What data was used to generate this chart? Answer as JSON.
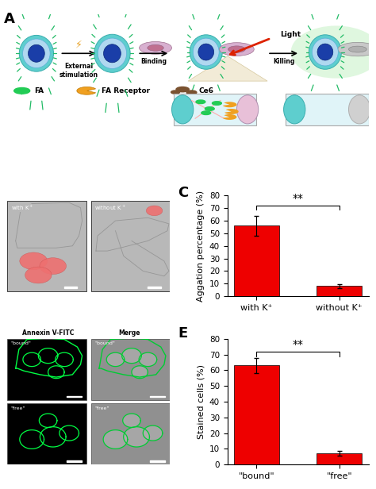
{
  "chart_C": {
    "categories": [
      "with K⁺",
      "without K⁺"
    ],
    "values": [
      56.0,
      8.0
    ],
    "errors": [
      8.0,
      1.5
    ],
    "bar_color": "#ee0000",
    "ylabel": "Aggation percentage (%)",
    "ylim": [
      0,
      80
    ],
    "yticks": [
      0,
      10,
      20,
      30,
      40,
      50,
      60,
      70,
      80
    ],
    "significance": "**",
    "label": "C"
  },
  "chart_E": {
    "categories": [
      "\"bound\"",
      "\"free\""
    ],
    "values": [
      63.0,
      7.0
    ],
    "errors": [
      5.0,
      1.5
    ],
    "bar_color": "#ee0000",
    "ylabel": "Stained cells (%)",
    "ylim": [
      0,
      80
    ],
    "yticks": [
      0,
      10,
      20,
      30,
      40,
      50,
      60,
      70,
      80
    ],
    "significance": "**",
    "label": "E"
  },
  "panel_labels_fontsize": 13,
  "tick_fontsize": 7.5,
  "ylabel_fontsize": 8,
  "xlabel_fontsize": 8,
  "sig_fontsize": 10,
  "bg_color": "#ffffff",
  "bar_width": 0.55,
  "figure_width": 4.74,
  "figure_height": 6.16
}
